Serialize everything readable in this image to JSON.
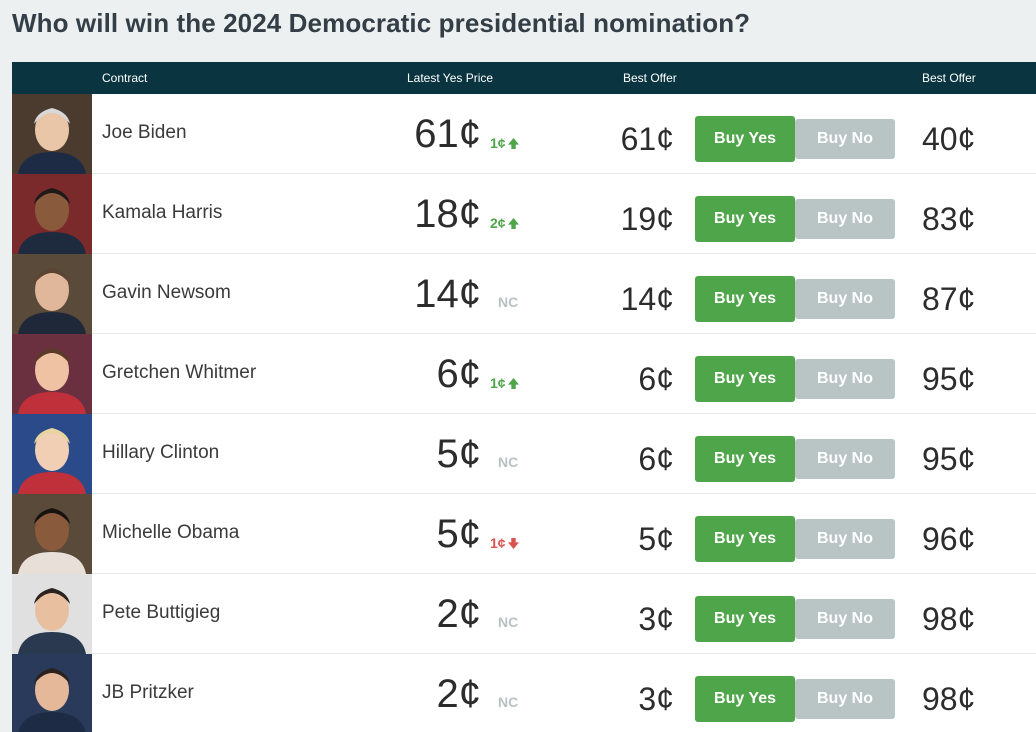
{
  "title": "Who will win the 2024 Democratic presidential nomination?",
  "columns": {
    "contract": "Contract",
    "latest_yes_price": "Latest Yes Price",
    "best_offer_yes": "Best Offer",
    "best_offer_no": "Best Offer"
  },
  "buttons": {
    "buy_yes": "Buy Yes",
    "buy_no": "Buy No"
  },
  "colors": {
    "header_bg": "#0a3540",
    "buy_yes": "#4fa54a",
    "buy_no": "#b9c4c4",
    "up": "#4fa54a",
    "down": "#d9534f",
    "nc": "#b8c2c4"
  },
  "rows": [
    {
      "name": "Joe Biden",
      "price": "61¢",
      "change": "1¢",
      "dir": "up",
      "offer_yes": "61¢",
      "offer_no": "40¢",
      "photo": "person-photo"
    },
    {
      "name": "Kamala Harris",
      "price": "18¢",
      "change": "2¢",
      "dir": "up",
      "offer_yes": "19¢",
      "offer_no": "83¢",
      "photo": "person-photo"
    },
    {
      "name": "Gavin Newsom",
      "price": "14¢",
      "change": "NC",
      "dir": "nc",
      "offer_yes": "14¢",
      "offer_no": "87¢",
      "photo": "person-photo"
    },
    {
      "name": "Gretchen Whitmer",
      "price": "6¢",
      "change": "1¢",
      "dir": "up",
      "offer_yes": "6¢",
      "offer_no": "95¢",
      "photo": "person-photo"
    },
    {
      "name": "Hillary Clinton",
      "price": "5¢",
      "change": "NC",
      "dir": "nc",
      "offer_yes": "6¢",
      "offer_no": "95¢",
      "photo": "person-photo"
    },
    {
      "name": "Michelle Obama",
      "price": "5¢",
      "change": "1¢",
      "dir": "down",
      "offer_yes": "5¢",
      "offer_no": "96¢",
      "photo": "person-photo"
    },
    {
      "name": "Pete Buttigieg",
      "price": "2¢",
      "change": "NC",
      "dir": "nc",
      "offer_yes": "3¢",
      "offer_no": "98¢",
      "photo": "person-photo"
    },
    {
      "name": "JB Pritzker",
      "price": "2¢",
      "change": "NC",
      "dir": "nc",
      "offer_yes": "3¢",
      "offer_no": "98¢",
      "photo": "person-photo"
    }
  ]
}
